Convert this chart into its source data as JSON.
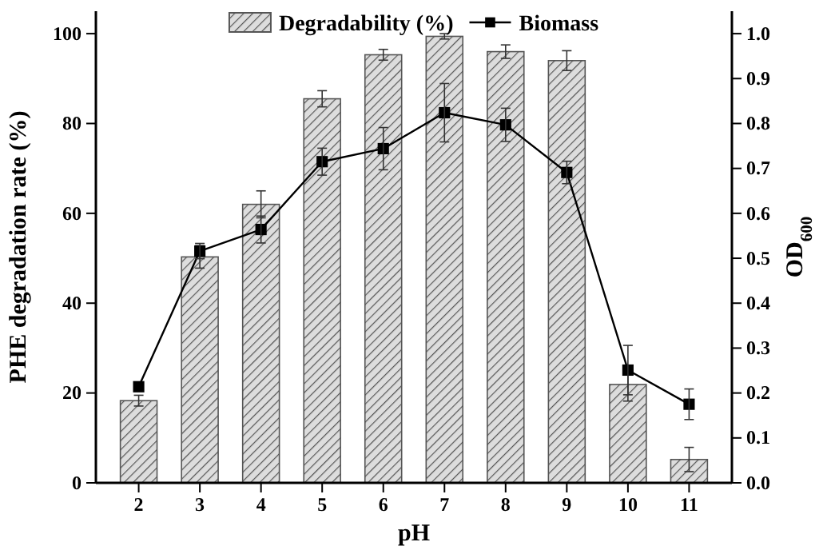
{
  "chart_data": {
    "type": "bar",
    "xlabel": "pH",
    "ylabel": "PHE degradation rate (%)",
    "y2label": "OD$_{600}$",
    "categories": [
      "2",
      "3",
      "4",
      "5",
      "6",
      "7",
      "8",
      "9",
      "10",
      "11"
    ],
    "series": [
      {
        "name": "Degradability (%)",
        "color": "#555555",
        "values": [
          18.3,
          50.3,
          62.0,
          85.5,
          95.3,
          99.4,
          96.0,
          94.0,
          21.9,
          5.2
        ],
        "errors": [
          1.2,
          2.5,
          3,
          1.8,
          1.2,
          0.6,
          1.5,
          2.2,
          3.7,
          2.7
        ]
      },
      {
        "name": "Biomass",
        "type": "line",
        "axis": "y2",
        "color": "#000000",
        "marker": "square",
        "line_style": "solid",
        "values": [
          0.214,
          0.516,
          0.564,
          0.715,
          0.744,
          0.824,
          0.797,
          0.691,
          0.251,
          0.175
        ],
        "errors": [
          null,
          0.017,
          0.03,
          0.03,
          0.047,
          0.065,
          0.037,
          0.025,
          0.055,
          0.034
        ]
      }
    ],
    "ylim": [
      0,
      105
    ],
    "yticks": [
      0,
      20,
      40,
      60,
      80,
      100
    ],
    "y2lim": [
      0,
      1.05
    ],
    "y2ticks": [
      {
        "value": 0,
        "label": "0.0"
      },
      {
        "value": 0.1,
        "label": "0.1"
      },
      {
        "value": 0.2,
        "label": "0.2"
      },
      {
        "value": 0.3,
        "label": "0.3"
      },
      {
        "value": 0.4,
        "label": "0.4"
      },
      {
        "value": 0.5,
        "label": "0.5"
      },
      {
        "value": 0.6,
        "label": "0.6"
      },
      {
        "value": 0.7,
        "label": "0.7"
      },
      {
        "value": 0.8,
        "label": "0.8"
      },
      {
        "value": 0.9,
        "label": "0.9"
      },
      {
        "value": 1.0,
        "label": "1.0"
      }
    ],
    "legend": "top",
    "grid": false
  }
}
